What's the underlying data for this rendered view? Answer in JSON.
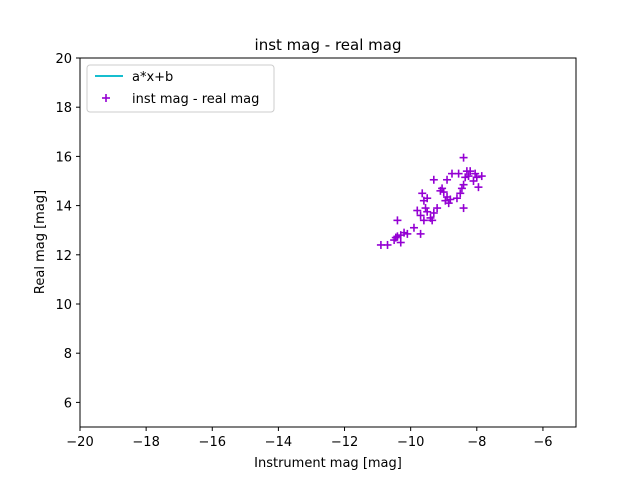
{
  "chart_data": {
    "type": "scatter",
    "title": "inst mag - real mag",
    "xlabel": "Instrument mag [mag]",
    "ylabel": "Real mag [mag]",
    "xlim": [
      -20,
      -5
    ],
    "ylim": [
      5,
      20
    ],
    "xticks": [
      -20,
      -18,
      -16,
      -14,
      -12,
      -10,
      -8,
      -6
    ],
    "yticks": [
      6,
      8,
      10,
      12,
      14,
      16,
      18,
      20
    ],
    "xtick_labels": [
      "−20",
      "−18",
      "−16",
      "−14",
      "−12",
      "−10",
      "−8",
      "−6"
    ],
    "ytick_labels": [
      "6",
      "8",
      "10",
      "12",
      "14",
      "16",
      "18",
      "20"
    ],
    "grid": false,
    "legend_position": "top-left",
    "series": [
      {
        "name": "a*x+b",
        "kind": "line",
        "color": "#17becf",
        "points": []
      },
      {
        "name": "inst mag - real mag",
        "kind": "scatter",
        "marker": "plus",
        "color": "#9400d3",
        "points": [
          [
            -10.9,
            12.4
          ],
          [
            -10.7,
            12.4
          ],
          [
            -10.5,
            12.6
          ],
          [
            -10.45,
            12.7
          ],
          [
            -10.4,
            12.75
          ],
          [
            -10.3,
            12.8
          ],
          [
            -10.2,
            12.9
          ],
          [
            -10.1,
            12.85
          ],
          [
            -10.3,
            12.5
          ],
          [
            -10.4,
            13.4
          ],
          [
            -9.9,
            13.1
          ],
          [
            -9.7,
            12.85
          ],
          [
            -9.8,
            13.8
          ],
          [
            -9.7,
            13.6
          ],
          [
            -9.6,
            13.4
          ],
          [
            -9.55,
            13.9
          ],
          [
            -9.6,
            14.2
          ],
          [
            -9.65,
            14.5
          ],
          [
            -9.5,
            14.3
          ],
          [
            -9.5,
            13.75
          ],
          [
            -9.4,
            13.5
          ],
          [
            -9.35,
            13.4
          ],
          [
            -9.3,
            13.7
          ],
          [
            -9.2,
            13.9
          ],
          [
            -9.3,
            15.05
          ],
          [
            -9.1,
            14.6
          ],
          [
            -9.05,
            14.7
          ],
          [
            -9.0,
            14.55
          ],
          [
            -8.95,
            14.2
          ],
          [
            -8.9,
            14.35
          ],
          [
            -8.85,
            14.1
          ],
          [
            -8.8,
            14.25
          ],
          [
            -8.9,
            15.05
          ],
          [
            -8.75,
            15.3
          ],
          [
            -8.6,
            14.3
          ],
          [
            -8.55,
            15.3
          ],
          [
            -8.5,
            14.5
          ],
          [
            -8.45,
            14.7
          ],
          [
            -8.4,
            13.9
          ],
          [
            -8.4,
            14.85
          ],
          [
            -8.35,
            15.15
          ],
          [
            -8.3,
            15.4
          ],
          [
            -8.25,
            15.2
          ],
          [
            -8.2,
            15.4
          ],
          [
            -8.1,
            15.0
          ],
          [
            -8.05,
            15.3
          ],
          [
            -8.0,
            15.15
          ],
          [
            -7.95,
            14.75
          ],
          [
            -7.85,
            15.2
          ],
          [
            -8.4,
            15.95
          ]
        ]
      }
    ]
  }
}
